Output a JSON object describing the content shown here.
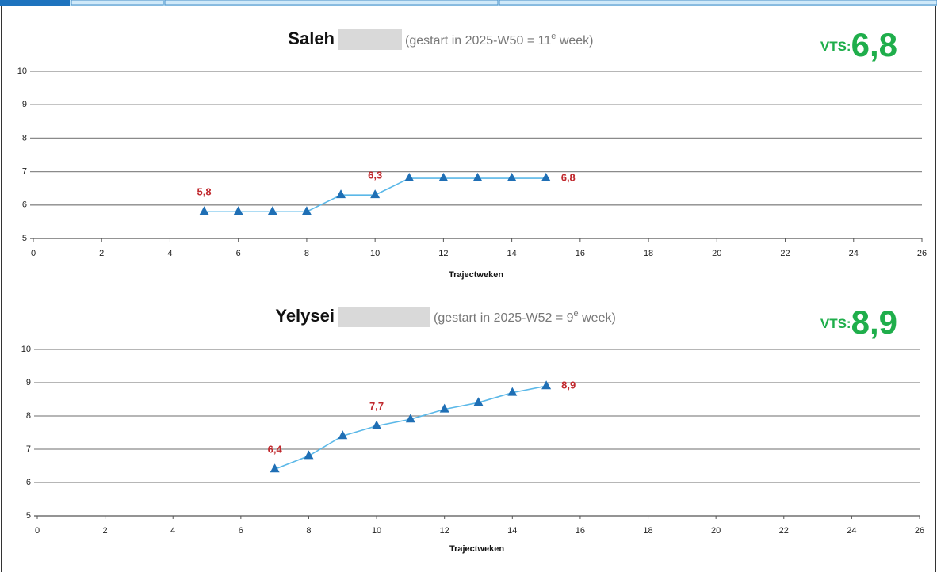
{
  "chart_data": [
    {
      "type": "line",
      "name": "Saleh",
      "subtitle": {
        "text": "(gestart in 2025-W50 = 11",
        "sup": "e",
        "rest": " week)"
      },
      "vts_label": "VTS:",
      "vts_value": "6,8",
      "xlabel": "Trajectweken",
      "x": [
        5,
        6,
        7,
        8,
        9,
        10,
        11,
        12,
        13,
        14,
        15
      ],
      "values": [
        5.8,
        5.8,
        5.8,
        5.8,
        6.3,
        6.3,
        6.8,
        6.8,
        6.8,
        6.8,
        6.8
      ],
      "value_labels": [
        "5,8",
        null,
        null,
        null,
        null,
        "6,3",
        null,
        null,
        null,
        null,
        "6,8"
      ],
      "line_color": "#5bb8e8",
      "marker_color": "#1f6fb5",
      "xlim": [
        0,
        26
      ],
      "xticks": [
        0,
        2,
        4,
        6,
        8,
        10,
        12,
        14,
        16,
        18,
        20,
        22,
        24,
        26
      ],
      "ylim": [
        5,
        10
      ],
      "yticks": [
        5,
        6,
        7,
        8,
        9,
        10
      ],
      "grid": true
    },
    {
      "type": "line",
      "name": "Yelysei",
      "subtitle": {
        "text": "(gestart in 2025-W52 = 9",
        "sup": "e",
        "rest": " week)"
      },
      "vts_label": "VTS:",
      "vts_value": "8,9",
      "xlabel": "Trajectweken",
      "x": [
        7,
        8,
        9,
        10,
        11,
        12,
        13,
        14,
        15
      ],
      "values": [
        6.4,
        6.8,
        7.4,
        7.7,
        7.9,
        8.2,
        8.4,
        8.7,
        8.9
      ],
      "value_labels": [
        "6,4",
        null,
        null,
        "7,7",
        null,
        null,
        null,
        null,
        "8,9"
      ],
      "line_color": "#5bb8e8",
      "marker_color": "#1f6fb5",
      "xlim": [
        0,
        26
      ],
      "xticks": [
        0,
        2,
        4,
        6,
        8,
        10,
        12,
        14,
        16,
        18,
        20,
        22,
        24,
        26
      ],
      "ylim": [
        5,
        10
      ],
      "yticks": [
        5,
        6,
        7,
        8,
        9,
        10
      ],
      "grid": true
    }
  ]
}
